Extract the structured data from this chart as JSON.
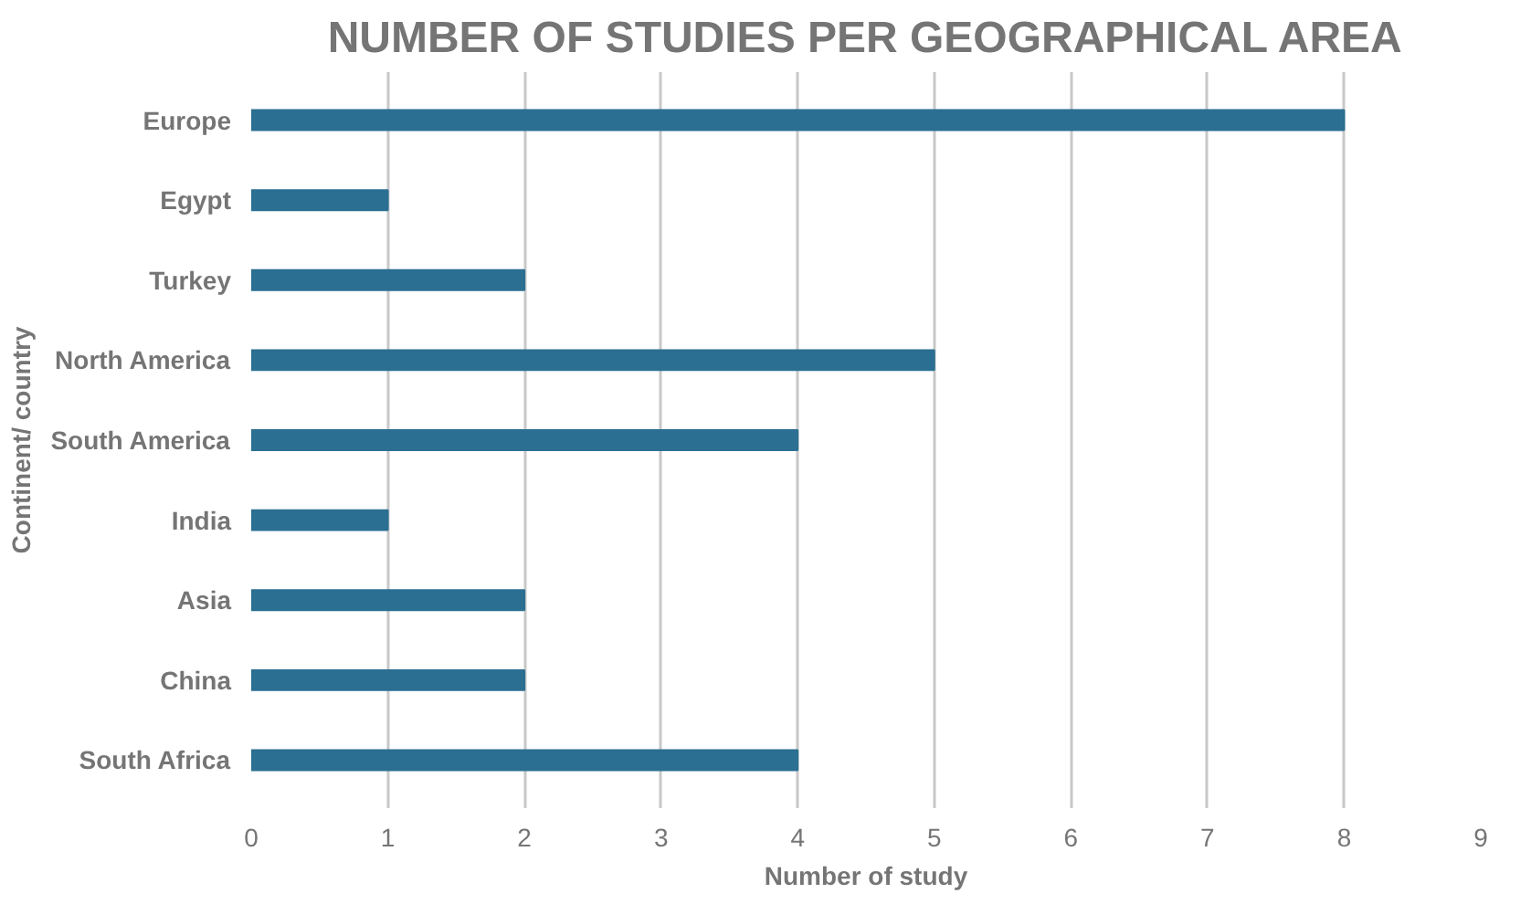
{
  "chart_data": {
    "type": "bar",
    "orientation": "horizontal",
    "title": "NUMBER OF STUDIES PER GEOGRAPHICAL AREA",
    "xlabel": "Number of study",
    "ylabel": "Continent/ country",
    "categories": [
      "Europe",
      "Egypt",
      "Turkey",
      "North America",
      "South America",
      "India",
      "Asia",
      "China",
      "South Africa"
    ],
    "values": [
      8,
      1,
      2,
      5,
      4,
      1,
      2,
      2,
      4
    ],
    "color": "#2b6f92",
    "xlim": [
      0,
      9
    ],
    "xticks": [
      0,
      1,
      2,
      3,
      4,
      5,
      6,
      7,
      8,
      9
    ],
    "grid": "x"
  }
}
